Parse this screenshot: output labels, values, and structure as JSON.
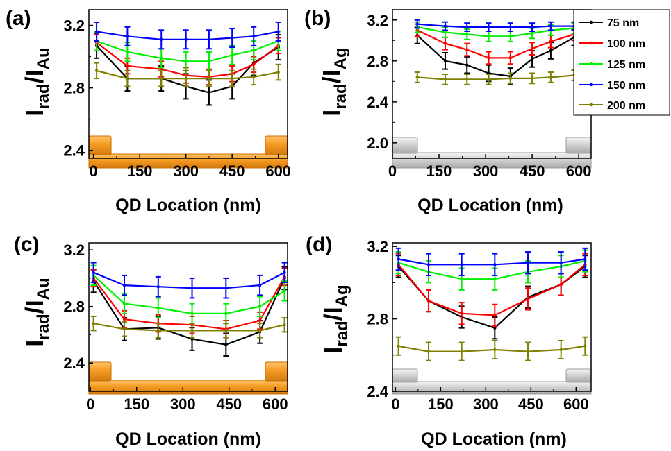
{
  "colors": {
    "75 nm": "#000000",
    "100 nm": "#ff0000",
    "125 nm": "#00ee00",
    "150 nm": "#0000ff",
    "200 nm": "#808000",
    "gold": "#f7a128",
    "silver": "#d0d0d0"
  },
  "legend": {
    "position": "top-right of panel (b)",
    "entries": [
      "75 nm",
      "100 nm",
      "125 nm",
      "150 nm",
      "200 nm"
    ]
  },
  "chart_data": [
    {
      "id": "a",
      "type": "line",
      "panel_label": "(a)",
      "ylabel_main": "I",
      "ylabel_sub1": "rad",
      "ylabel_sep": "/I",
      "ylabel_sub2": "Au",
      "xlabel": "QD Location (nm)",
      "xlim": [
        -15,
        630
      ],
      "ylim": [
        2.35,
        3.3
      ],
      "xticks": [
        0,
        150,
        300,
        450,
        600
      ],
      "yticks": [
        2.4,
        2.8,
        3.2
      ],
      "structure": "gold",
      "x": [
        10,
        110,
        220,
        300,
        375,
        450,
        520,
        600
      ],
      "series": [
        {
          "name": "75 nm",
          "values": [
            3.07,
            2.86,
            2.86,
            2.81,
            2.77,
            2.81,
            2.96,
            3.06
          ],
          "err": 0.08
        },
        {
          "name": "100 nm",
          "values": [
            3.09,
            2.94,
            2.92,
            2.88,
            2.87,
            2.89,
            2.95,
            3.07
          ],
          "err": 0.05
        },
        {
          "name": "125 nm",
          "values": [
            3.1,
            3.03,
            2.99,
            2.97,
            2.97,
            3.01,
            3.04,
            3.1
          ],
          "err": 0.06
        },
        {
          "name": "150 nm",
          "values": [
            3.16,
            3.13,
            3.11,
            3.11,
            3.11,
            3.12,
            3.13,
            3.16
          ],
          "err": 0.06
        },
        {
          "name": "200 nm",
          "values": [
            2.91,
            2.86,
            2.86,
            2.86,
            2.86,
            2.86,
            2.87,
            2.9
          ],
          "err": 0.05
        }
      ]
    },
    {
      "id": "b",
      "type": "line",
      "panel_label": "(b)",
      "ylabel_main": "I",
      "ylabel_sub1": "rad",
      "ylabel_sep": "/I",
      "ylabel_sub2": "Ag",
      "xlabel": "QD Location (nm)",
      "xlim": [
        0,
        640
      ],
      "ylim": [
        1.85,
        3.3
      ],
      "xticks": [
        0,
        150,
        300,
        450,
        600
      ],
      "yticks": [
        2.0,
        2.4,
        2.8,
        3.2
      ],
      "structure": "silver",
      "x": [
        80,
        170,
        240,
        310,
        380,
        450,
        510,
        585
      ],
      "series": [
        {
          "name": "75 nm",
          "values": [
            3.05,
            2.8,
            2.76,
            2.68,
            2.65,
            2.82,
            2.9,
            3.03
          ],
          "err": 0.08
        },
        {
          "name": "100 nm",
          "values": [
            3.1,
            2.97,
            2.91,
            2.83,
            2.83,
            2.92,
            2.99,
            3.06
          ],
          "err": 0.06
        },
        {
          "name": "125 nm",
          "values": [
            3.13,
            3.08,
            3.06,
            3.04,
            3.04,
            3.07,
            3.1,
            3.12
          ],
          "err": 0.05
        },
        {
          "name": "150 nm",
          "values": [
            3.16,
            3.14,
            3.13,
            3.13,
            3.13,
            3.13,
            3.14,
            3.14
          ],
          "err": 0.04
        },
        {
          "name": "200 nm",
          "values": [
            2.64,
            2.62,
            2.62,
            2.62,
            2.63,
            2.63,
            2.64,
            2.66
          ],
          "err": 0.05
        }
      ]
    },
    {
      "id": "c",
      "type": "line",
      "panel_label": "(c)",
      "ylabel_main": "I",
      "ylabel_sub1": "rad",
      "ylabel_sep": "/I",
      "ylabel_sub2": "Au",
      "xlabel": "QD Location (nm)",
      "xlim": [
        -5,
        640
      ],
      "ylim": [
        2.2,
        3.25
      ],
      "xticks": [
        0,
        150,
        300,
        450,
        600
      ],
      "yticks": [
        2.4,
        2.8,
        3.2
      ],
      "structure": "gold",
      "x": [
        10,
        110,
        220,
        330,
        440,
        550,
        630
      ],
      "series": [
        {
          "name": "75 nm",
          "values": [
            2.98,
            2.64,
            2.65,
            2.57,
            2.53,
            2.62,
            3.0
          ],
          "err": 0.08
        },
        {
          "name": "100 nm",
          "values": [
            3.0,
            2.71,
            2.68,
            2.67,
            2.64,
            2.7,
            3.01
          ],
          "err": 0.06
        },
        {
          "name": "125 nm",
          "values": [
            3.02,
            2.82,
            2.79,
            2.75,
            2.75,
            2.8,
            2.91
          ],
          "err": 0.07
        },
        {
          "name": "150 nm",
          "values": [
            3.04,
            2.95,
            2.94,
            2.93,
            2.93,
            2.95,
            3.04
          ],
          "err": 0.07
        },
        {
          "name": "200 nm",
          "values": [
            2.68,
            2.64,
            2.63,
            2.63,
            2.63,
            2.63,
            2.67
          ],
          "err": 0.05
        }
      ]
    },
    {
      "id": "d",
      "type": "line",
      "panel_label": "(d)",
      "ylabel_main": "I",
      "ylabel_sub1": "rad",
      "ylabel_sep": "/I",
      "ylabel_sub2": "Ag",
      "xlabel": "QD Location (nm)",
      "xlim": [
        -10,
        650
      ],
      "ylim": [
        2.4,
        3.22
      ],
      "xticks": [
        0,
        150,
        300,
        450,
        600
      ],
      "yticks": [
        2.4,
        2.8,
        3.2
      ],
      "structure": "silver",
      "x": [
        10,
        110,
        220,
        330,
        440,
        550,
        630
      ],
      "series": [
        {
          "name": "75 nm",
          "values": [
            3.09,
            2.9,
            2.81,
            2.75,
            2.92,
            2.99,
            3.09
          ],
          "err": 0.06
        },
        {
          "name": "100 nm",
          "values": [
            3.1,
            2.9,
            2.83,
            2.82,
            2.91,
            2.99,
            3.1
          ],
          "err": 0.06
        },
        {
          "name": "125 nm",
          "values": [
            3.11,
            3.06,
            3.02,
            3.02,
            3.06,
            3.09,
            3.12
          ],
          "err": 0.06
        },
        {
          "name": "150 nm",
          "values": [
            3.13,
            3.1,
            3.1,
            3.1,
            3.11,
            3.11,
            3.13
          ],
          "err": 0.06
        },
        {
          "name": "200 nm",
          "values": [
            2.65,
            2.62,
            2.62,
            2.63,
            2.62,
            2.63,
            2.65
          ],
          "err": 0.05
        }
      ]
    }
  ]
}
